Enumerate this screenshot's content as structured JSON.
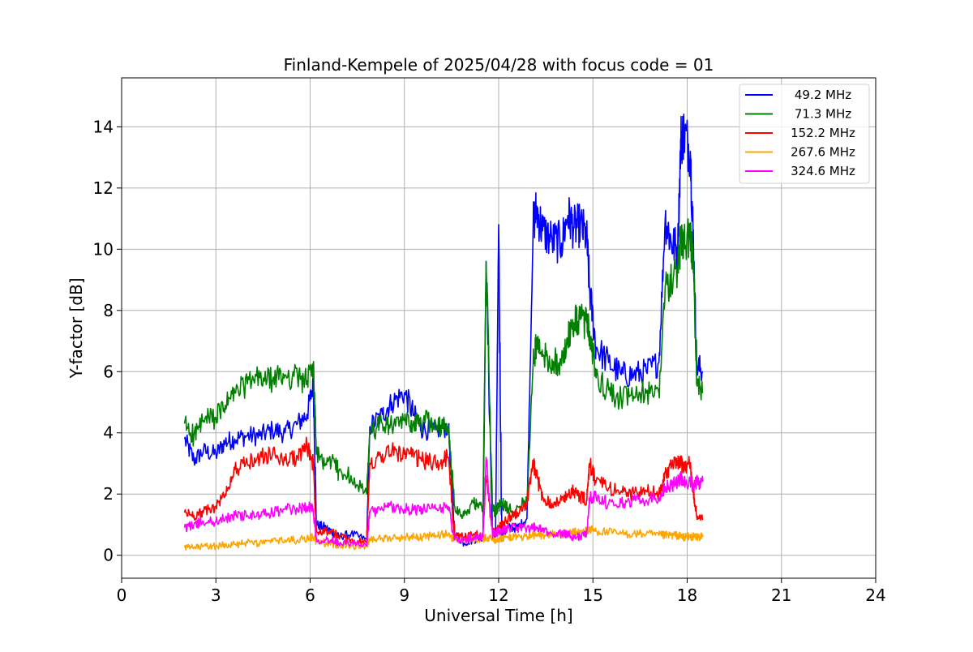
{
  "chart_data": {
    "type": "line",
    "title": "Finland-Kempele of 2025/04/28 with focus code = 01",
    "xlabel": "Universal Time [h]",
    "ylabel": "Y-factor [dB]",
    "xlim": [
      0,
      24
    ],
    "ylim": [
      -0.75,
      15.6
    ],
    "xticks": [
      0,
      3,
      6,
      9,
      12,
      15,
      18,
      21,
      24
    ],
    "yticks": [
      0,
      2,
      4,
      6,
      8,
      10,
      12,
      14
    ],
    "grid": true,
    "legend_position": "top-right",
    "series": [
      {
        "name": " 49.2 MHz",
        "color": "#0000ff",
        "x": [
          2.0,
          2.3,
          2.6,
          3.0,
          3.3,
          3.6,
          4.0,
          4.4,
          4.8,
          5.2,
          5.6,
          5.9,
          6.1,
          6.2,
          6.5,
          6.8,
          6.9,
          7.3,
          7.8,
          7.9,
          8.3,
          8.6,
          9.0,
          9.3,
          9.6,
          10.0,
          10.4,
          10.6,
          10.9,
          11.2,
          11.5,
          11.6,
          11.8,
          11.9,
          12.0,
          12.1,
          12.3,
          12.6,
          12.9,
          13.1,
          13.2,
          13.4,
          13.7,
          14.0,
          14.2,
          14.4,
          14.6,
          14.8,
          14.9,
          15.1,
          15.5,
          15.9,
          16.3,
          16.7,
          17.1,
          17.3,
          17.5,
          17.7,
          17.8,
          17.9,
          18.1,
          18.2,
          18.3,
          18.5
        ],
        "y": [
          3.8,
          3.1,
          3.4,
          3.3,
          3.7,
          3.8,
          3.9,
          3.9,
          4.1,
          4.0,
          4.3,
          4.6,
          5.6,
          1.0,
          0.9,
          0.7,
          0.6,
          0.7,
          0.5,
          4.2,
          4.6,
          5.0,
          5.3,
          4.6,
          4.1,
          4.1,
          4.2,
          0.7,
          0.4,
          0.5,
          0.6,
          9.6,
          0.8,
          0.6,
          10.8,
          0.6,
          0.9,
          0.9,
          1.2,
          10.8,
          11.3,
          10.6,
          10.3,
          10.2,
          11.1,
          10.7,
          10.8,
          10.4,
          8.6,
          6.8,
          6.3,
          5.9,
          5.9,
          6.0,
          6.3,
          11.0,
          10.2,
          10.0,
          13.6,
          13.8,
          13.2,
          10.1,
          6.2,
          6.0
        ]
      },
      {
        "name": " 71.3 MHz",
        "color": "#008000",
        "x": [
          2.0,
          2.3,
          2.6,
          3.0,
          3.3,
          3.6,
          4.0,
          4.4,
          4.8,
          5.2,
          5.6,
          5.9,
          6.1,
          6.2,
          6.5,
          6.8,
          6.9,
          7.3,
          7.8,
          7.9,
          8.3,
          8.6,
          9.0,
          9.3,
          9.6,
          10.0,
          10.4,
          10.6,
          10.9,
          11.2,
          11.5,
          11.6,
          11.8,
          11.9,
          12.0,
          12.1,
          12.3,
          12.6,
          12.9,
          13.1,
          13.2,
          13.4,
          13.7,
          14.0,
          14.2,
          14.4,
          14.6,
          14.8,
          14.9,
          15.1,
          15.5,
          15.9,
          16.3,
          16.7,
          17.1,
          17.3,
          17.5,
          17.7,
          17.8,
          17.9,
          18.1,
          18.2,
          18.3,
          18.5
        ],
        "y": [
          4.3,
          3.9,
          4.4,
          4.5,
          4.9,
          5.3,
          5.6,
          5.8,
          5.7,
          5.9,
          5.8,
          5.7,
          6.2,
          3.3,
          3.0,
          3.1,
          2.7,
          2.6,
          2.0,
          4.0,
          4.3,
          4.2,
          4.4,
          4.3,
          4.4,
          4.3,
          4.1,
          1.6,
          1.3,
          1.7,
          1.5,
          9.6,
          1.6,
          1.4,
          1.6,
          1.7,
          1.5,
          1.6,
          1.8,
          6.3,
          6.9,
          6.5,
          6.4,
          6.2,
          7.1,
          7.6,
          7.7,
          7.6,
          7.2,
          5.8,
          5.4,
          5.1,
          5.2,
          5.3,
          5.3,
          8.8,
          8.9,
          9.4,
          10.2,
          10.4,
          10.3,
          9.6,
          5.6,
          5.3
        ]
      },
      {
        "name": "152.2 MHz",
        "color": "#ff0000",
        "x": [
          2.0,
          2.3,
          2.6,
          3.0,
          3.3,
          3.6,
          4.0,
          4.4,
          4.8,
          5.2,
          5.6,
          5.9,
          6.1,
          6.2,
          6.5,
          6.8,
          6.9,
          7.3,
          7.8,
          7.9,
          8.3,
          8.6,
          9.0,
          9.3,
          9.6,
          10.0,
          10.4,
          10.6,
          10.9,
          11.2,
          11.5,
          11.6,
          11.8,
          11.9,
          12.0,
          12.1,
          12.3,
          12.6,
          12.9,
          13.1,
          13.2,
          13.4,
          13.7,
          14.0,
          14.2,
          14.4,
          14.6,
          14.8,
          14.9,
          15.1,
          15.5,
          15.9,
          16.3,
          16.7,
          17.1,
          17.3,
          17.5,
          17.7,
          17.8,
          17.9,
          18.1,
          18.2,
          18.3,
          18.5
        ],
        "y": [
          1.4,
          1.3,
          1.4,
          1.6,
          2.0,
          2.8,
          3.0,
          3.2,
          3.3,
          3.1,
          3.2,
          3.6,
          3.0,
          0.8,
          0.8,
          0.7,
          0.6,
          0.5,
          0.4,
          3.0,
          3.3,
          3.4,
          3.3,
          3.2,
          3.1,
          3.0,
          3.2,
          0.6,
          0.6,
          0.7,
          0.7,
          2.6,
          0.8,
          0.7,
          0.9,
          1.0,
          1.2,
          1.4,
          1.7,
          3.0,
          2.6,
          1.9,
          1.7,
          1.8,
          2.0,
          2.1,
          1.9,
          1.8,
          3.0,
          2.4,
          2.2,
          2.1,
          2.0,
          2.1,
          2.0,
          2.7,
          2.9,
          3.0,
          3.0,
          2.9,
          3.0,
          2.0,
          1.3,
          1.2
        ]
      },
      {
        "name": "267.6 MHz",
        "color": "#ffa500",
        "x": [
          2.0,
          2.3,
          2.6,
          3.0,
          3.3,
          3.6,
          4.0,
          4.4,
          4.8,
          5.2,
          5.6,
          5.9,
          6.1,
          6.2,
          6.5,
          6.8,
          6.9,
          7.3,
          7.8,
          7.9,
          8.3,
          8.6,
          9.0,
          9.3,
          9.6,
          10.0,
          10.4,
          10.6,
          10.9,
          11.2,
          11.5,
          11.6,
          11.8,
          11.9,
          12.0,
          12.1,
          12.3,
          12.6,
          12.9,
          13.1,
          13.2,
          13.4,
          13.7,
          14.0,
          14.2,
          14.4,
          14.6,
          14.8,
          14.9,
          15.1,
          15.5,
          15.9,
          16.3,
          16.7,
          17.1,
          17.3,
          17.5,
          17.7,
          17.8,
          17.9,
          18.1,
          18.2,
          18.3,
          18.5
        ],
        "y": [
          0.25,
          0.25,
          0.28,
          0.3,
          0.35,
          0.35,
          0.4,
          0.4,
          0.45,
          0.5,
          0.5,
          0.55,
          0.6,
          0.45,
          0.4,
          0.35,
          0.35,
          0.3,
          0.3,
          0.55,
          0.55,
          0.55,
          0.6,
          0.6,
          0.6,
          0.65,
          0.7,
          0.5,
          0.5,
          0.5,
          0.55,
          0.55,
          0.55,
          0.5,
          0.55,
          0.55,
          0.6,
          0.6,
          0.6,
          0.65,
          0.65,
          0.65,
          0.7,
          0.7,
          0.7,
          0.75,
          0.75,
          0.8,
          0.85,
          0.8,
          0.75,
          0.7,
          0.7,
          0.7,
          0.65,
          0.65,
          0.65,
          0.65,
          0.6,
          0.6,
          0.6,
          0.6,
          0.6,
          0.6
        ]
      },
      {
        "name": "324.6 MHz",
        "color": "#ff00ff",
        "x": [
          2.0,
          2.3,
          2.6,
          3.0,
          3.3,
          3.6,
          4.0,
          4.4,
          4.8,
          5.2,
          5.6,
          5.9,
          6.1,
          6.2,
          6.5,
          6.8,
          6.9,
          7.3,
          7.8,
          7.9,
          8.3,
          8.6,
          9.0,
          9.3,
          9.6,
          10.0,
          10.4,
          10.6,
          10.9,
          11.2,
          11.5,
          11.6,
          11.8,
          11.9,
          12.0,
          12.1,
          12.3,
          12.6,
          12.9,
          13.1,
          13.2,
          13.4,
          13.7,
          14.0,
          14.2,
          14.4,
          14.6,
          14.8,
          14.9,
          15.1,
          15.5,
          15.9,
          16.3,
          16.7,
          17.1,
          17.3,
          17.5,
          17.7,
          17.8,
          17.9,
          18.1,
          18.2,
          18.3,
          18.5
        ],
        "y": [
          0.9,
          1.0,
          1.1,
          1.1,
          1.2,
          1.3,
          1.3,
          1.3,
          1.4,
          1.5,
          1.5,
          1.6,
          1.5,
          0.5,
          0.5,
          0.5,
          0.4,
          0.4,
          0.3,
          1.4,
          1.5,
          1.6,
          1.5,
          1.5,
          1.5,
          1.5,
          1.6,
          0.5,
          0.5,
          0.6,
          0.6,
          3.2,
          0.7,
          0.7,
          0.8,
          0.8,
          0.9,
          0.9,
          0.9,
          0.9,
          0.9,
          0.8,
          0.7,
          0.7,
          0.7,
          0.6,
          0.6,
          0.7,
          1.9,
          1.9,
          1.7,
          1.7,
          1.8,
          1.8,
          1.9,
          2.2,
          2.3,
          2.4,
          2.5,
          2.4,
          2.4,
          2.3,
          2.4,
          2.4
        ]
      }
    ]
  }
}
